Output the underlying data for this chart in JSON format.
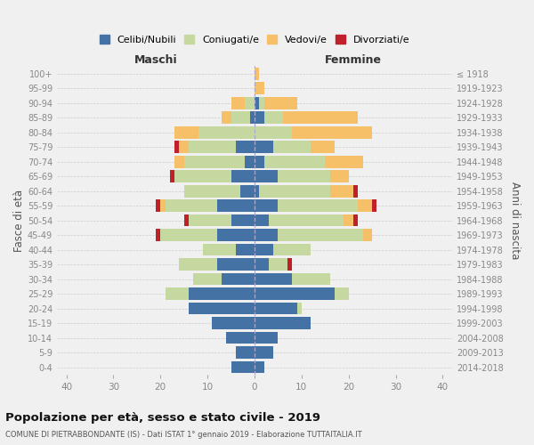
{
  "age_groups": [
    "0-4",
    "5-9",
    "10-14",
    "15-19",
    "20-24",
    "25-29",
    "30-34",
    "35-39",
    "40-44",
    "45-49",
    "50-54",
    "55-59",
    "60-64",
    "65-69",
    "70-74",
    "75-79",
    "80-84",
    "85-89",
    "90-94",
    "95-99",
    "100+"
  ],
  "birth_years": [
    "2014-2018",
    "2009-2013",
    "2004-2008",
    "1999-2003",
    "1994-1998",
    "1989-1993",
    "1984-1988",
    "1979-1983",
    "1974-1978",
    "1969-1973",
    "1964-1968",
    "1959-1963",
    "1954-1958",
    "1949-1953",
    "1944-1948",
    "1939-1943",
    "1934-1938",
    "1929-1933",
    "1924-1928",
    "1919-1923",
    "≤ 1918"
  ],
  "maschi": {
    "celibi": [
      5,
      4,
      6,
      9,
      14,
      14,
      7,
      8,
      4,
      8,
      5,
      8,
      3,
      5,
      2,
      4,
      0,
      1,
      0,
      0,
      0
    ],
    "coniugati": [
      0,
      0,
      0,
      0,
      0,
      5,
      6,
      8,
      7,
      12,
      9,
      11,
      12,
      12,
      13,
      10,
      12,
      4,
      2,
      0,
      0
    ],
    "vedovi": [
      0,
      0,
      0,
      0,
      0,
      0,
      0,
      0,
      0,
      0,
      0,
      1,
      0,
      0,
      2,
      2,
      5,
      2,
      3,
      0,
      0
    ],
    "divorziati": [
      0,
      0,
      0,
      0,
      0,
      0,
      0,
      0,
      0,
      1,
      1,
      1,
      0,
      1,
      0,
      1,
      0,
      0,
      0,
      0,
      0
    ]
  },
  "femmine": {
    "nubili": [
      2,
      4,
      5,
      12,
      9,
      17,
      8,
      3,
      4,
      5,
      3,
      5,
      1,
      5,
      2,
      4,
      0,
      2,
      1,
      0,
      0
    ],
    "coniugate": [
      0,
      0,
      0,
      0,
      1,
      3,
      8,
      4,
      8,
      18,
      16,
      17,
      15,
      11,
      13,
      8,
      8,
      4,
      1,
      0,
      0
    ],
    "vedove": [
      0,
      0,
      0,
      0,
      0,
      0,
      0,
      0,
      0,
      2,
      2,
      3,
      5,
      4,
      8,
      5,
      17,
      16,
      7,
      2,
      1
    ],
    "divorziate": [
      0,
      0,
      0,
      0,
      0,
      0,
      0,
      1,
      0,
      0,
      1,
      1,
      1,
      0,
      0,
      0,
      0,
      0,
      0,
      0,
      0
    ]
  },
  "colors": {
    "celibi": "#4472a4",
    "coniugati": "#c5d8a0",
    "vedovi": "#f5c068",
    "divorziati": "#c0202a"
  },
  "xlim": 42,
  "title": "Popolazione per età, sesso e stato civile - 2019",
  "subtitle": "COMUNE DI PIETRABBONDANTE (IS) - Dati ISTAT 1° gennaio 2019 - Elaborazione TUTTAITALIA.IT",
  "ylabel_left": "Fasce di età",
  "ylabel_right": "Anni di nascita",
  "xlabel_maschi": "Maschi",
  "xlabel_femmine": "Femmine",
  "legend_labels": [
    "Celibi/Nubili",
    "Coniugati/e",
    "Vedovi/e",
    "Divorziati/e"
  ],
  "background_color": "#f0f0f0",
  "grid_color": "#cccccc",
  "tick_color": "#888888"
}
